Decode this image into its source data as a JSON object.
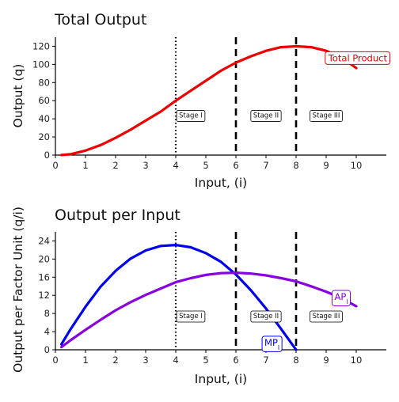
{
  "chart_data": [
    {
      "type": "line",
      "title": "Total Output",
      "xlabel": "Input, (i)",
      "ylabel": "Output (q)",
      "xlim": [
        0,
        11
      ],
      "ylim": [
        0,
        130
      ],
      "xticks": [
        0,
        1,
        2,
        3,
        4,
        5,
        6,
        7,
        8,
        9,
        10
      ],
      "yticks": [
        0,
        20,
        40,
        60,
        80,
        100,
        120
      ],
      "series": [
        {
          "name": "Total Product",
          "color": "#ee0000",
          "x": [
            0.2,
            0.5,
            1,
            1.5,
            2,
            2.5,
            3,
            3.5,
            4,
            4.5,
            5,
            5.5,
            6,
            6.5,
            7,
            7.5,
            8,
            8.5,
            9,
            9.5,
            10
          ],
          "y": [
            0.1,
            1,
            5,
            11,
            19,
            28,
            38,
            48,
            60,
            71,
            82,
            93,
            102,
            109,
            115,
            119,
            120,
            119,
            115,
            108,
            96
          ]
        }
      ],
      "vlines": [
        {
          "x": 4,
          "style": "dotted"
        },
        {
          "x": 6,
          "style": "dashed"
        },
        {
          "x": 8,
          "style": "dashed"
        }
      ],
      "annotations": [
        {
          "text": "Stage I",
          "x": 4.5,
          "y": 44
        },
        {
          "text": "Stage II",
          "x": 7.0,
          "y": 44
        },
        {
          "text": "Stage III",
          "x": 9.0,
          "y": 44
        }
      ],
      "legend": "curve label on right",
      "grid": false
    },
    {
      "type": "line",
      "title": "Output per Input",
      "xlabel": "Input, (i)",
      "ylabel": "Output per Factor Unit (q/i)",
      "xlim": [
        0,
        11
      ],
      "ylim": [
        0,
        26
      ],
      "xticks": [
        0,
        1,
        2,
        3,
        4,
        5,
        6,
        7,
        8,
        9,
        10
      ],
      "yticks": [
        0,
        4,
        8,
        12,
        16,
        20,
        24
      ],
      "series": [
        {
          "name": "MP",
          "label_sub": "l",
          "color": "#0000ee",
          "x": [
            0.2,
            0.5,
            1,
            1.5,
            2,
            2.5,
            3,
            3.5,
            4,
            4.5,
            5,
            5.5,
            6,
            6.5,
            7,
            7.5,
            8
          ],
          "y": [
            1.2,
            4.5,
            9.5,
            13.9,
            17.4,
            20.1,
            21.9,
            22.9,
            23.1,
            22.6,
            21.3,
            19.4,
            16.6,
            13.1,
            9.1,
            4.6,
            0
          ]
        },
        {
          "name": "AP",
          "label_sub": "l",
          "color": "#8800dd",
          "x": [
            0.2,
            0.5,
            1,
            1.5,
            2,
            2.5,
            3,
            3.5,
            4,
            4.5,
            5,
            5.5,
            6,
            6.5,
            7,
            7.5,
            8,
            8.5,
            9,
            9.5,
            10
          ],
          "y": [
            0.6,
            2.1,
            4.4,
            6.6,
            8.7,
            10.5,
            12.1,
            13.5,
            14.9,
            15.8,
            16.5,
            16.9,
            17.0,
            16.8,
            16.4,
            15.8,
            15.1,
            14.0,
            12.8,
            11.4,
            9.6
          ]
        }
      ],
      "vlines": [
        {
          "x": 4,
          "style": "dotted"
        },
        {
          "x": 6,
          "style": "dashed"
        },
        {
          "x": 8,
          "style": "dashed"
        }
      ],
      "annotations": [
        {
          "text": "Stage I",
          "x": 4.5,
          "y": 7.5
        },
        {
          "text": "Stage II",
          "x": 7.0,
          "y": 7.5
        },
        {
          "text": "Stage III",
          "x": 9.0,
          "y": 7.5
        }
      ],
      "legend": "curve labels near lines",
      "grid": false
    }
  ]
}
